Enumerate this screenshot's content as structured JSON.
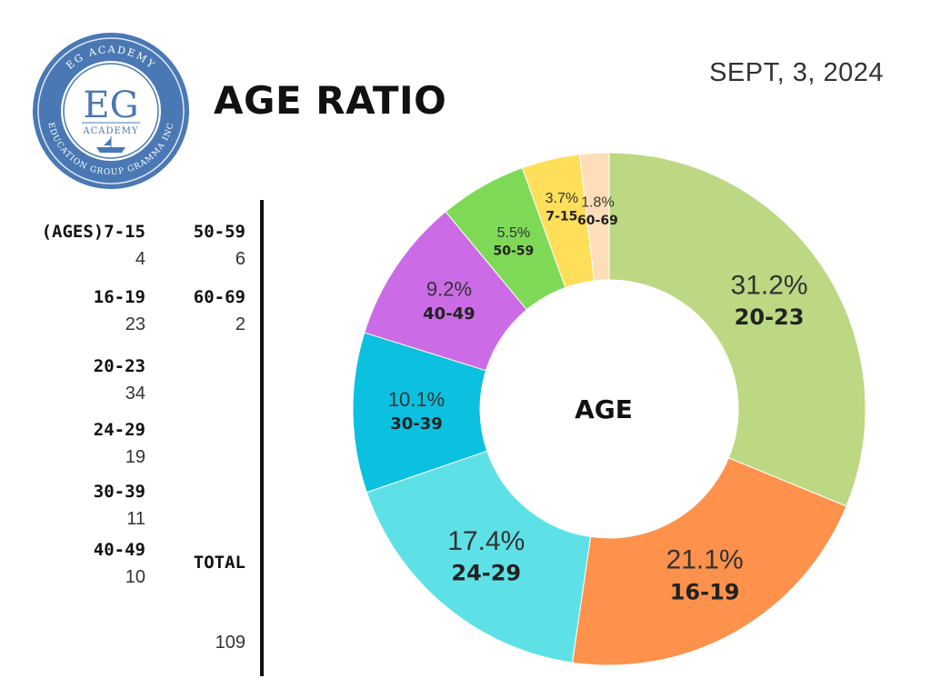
{
  "header": {
    "title": "AGE RATIO",
    "date": "SEPT, 3, 2024"
  },
  "logo": {
    "top_text": "EG ACADEMY",
    "initials": "EG",
    "sub_text": "ACADEMY",
    "bottom_text": "EDUCATION GROUP GRAMMA INC",
    "color": "#4a78b4"
  },
  "table": {
    "left": [
      {
        "label": "(AGES)7-15",
        "value": "4"
      },
      {
        "label": "16-19",
        "value": "23"
      },
      {
        "label": "20-23",
        "value": "34"
      },
      {
        "label": "24-29",
        "value": "19"
      },
      {
        "label": "30-39",
        "value": "11"
      },
      {
        "label": "40-49",
        "value": "10"
      }
    ],
    "right": [
      {
        "label": "50-59",
        "value": "6"
      },
      {
        "label": "60-69",
        "value": "2"
      }
    ],
    "total_label": "TOTAL",
    "total_value": "109"
  },
  "chart_data": {
    "type": "pie",
    "style": "donut",
    "center_label": "AGE",
    "start": "top, clockwise",
    "slices": [
      {
        "label": "20-23",
        "value": 34,
        "percent": "31.2%",
        "color": "#bcd882"
      },
      {
        "label": "16-19",
        "value": 23,
        "percent": "21.1%",
        "color": "#fe914b"
      },
      {
        "label": "24-29",
        "value": 19,
        "percent": "17.4%",
        "color": "#5ee1e6"
      },
      {
        "label": "30-39",
        "value": 11,
        "percent": "10.1%",
        "color": "#0cc0df"
      },
      {
        "label": "40-49",
        "value": 10,
        "percent": "9.2%",
        "color": "#cb6ce6"
      },
      {
        "label": "50-59",
        "value": 6,
        "percent": "5.5%",
        "color": "#7ed957"
      },
      {
        "label": "7-15",
        "value": 4,
        "percent": "3.7%",
        "color": "#ffde59"
      },
      {
        "label": "60-69",
        "value": 2,
        "percent": "1.8%",
        "color": "#fedeb8"
      }
    ]
  }
}
